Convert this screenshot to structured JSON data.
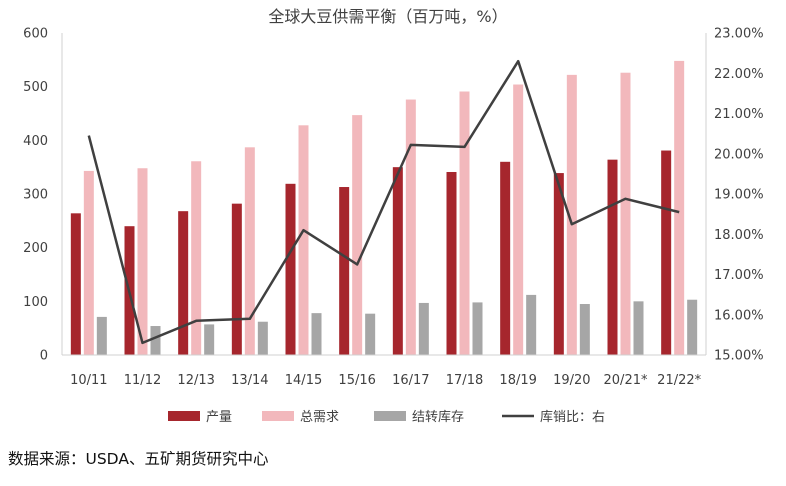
{
  "chart_data": {
    "type": "bar",
    "title": "全球大豆供需平衡（百万吨，%）",
    "categories": [
      "10/11",
      "11/12",
      "12/13",
      "13/14",
      "14/15",
      "15/16",
      "16/17",
      "17/18",
      "18/19",
      "19/20",
      "20/21*",
      "21/22*"
    ],
    "series": [
      {
        "name": "产量",
        "type": "bar",
        "axis": "left",
        "color": "#A6262D",
        "values": [
          264,
          240,
          268,
          282,
          319,
          313,
          350,
          341,
          360,
          339,
          364,
          381
        ]
      },
      {
        "name": "总需求",
        "type": "bar",
        "axis": "left",
        "color": "#F2B8BC",
        "values": [
          343,
          348,
          361,
          387,
          428,
          447,
          476,
          491,
          504,
          522,
          526,
          548
        ]
      },
      {
        "name": "结转库存",
        "type": "bar",
        "axis": "left",
        "color": "#A6A6A6",
        "values": [
          71,
          54,
          57,
          62,
          78,
          77,
          97,
          98,
          112,
          95,
          100,
          103
        ]
      },
      {
        "name": "库销比：右",
        "type": "line",
        "axis": "right",
        "color": "#404040",
        "values": [
          20.45,
          15.3,
          15.85,
          15.9,
          18.1,
          17.25,
          20.22,
          20.17,
          22.3,
          18.25,
          18.88,
          18.55
        ]
      }
    ],
    "y_left": {
      "min": 0,
      "max": 600,
      "step": 100,
      "ticks": [
        "0",
        "100",
        "200",
        "300",
        "400",
        "500",
        "600"
      ]
    },
    "y_right": {
      "min": 15,
      "max": 23,
      "step": 1,
      "ticks": [
        "15.00%",
        "16.00%",
        "17.00%",
        "18.00%",
        "19.00%",
        "20.00%",
        "21.00%",
        "22.00%",
        "23.00%"
      ]
    },
    "grid": false,
    "legend_position": "bottom"
  },
  "source_text": "数据来源：USDA、五矿期货研究中心"
}
